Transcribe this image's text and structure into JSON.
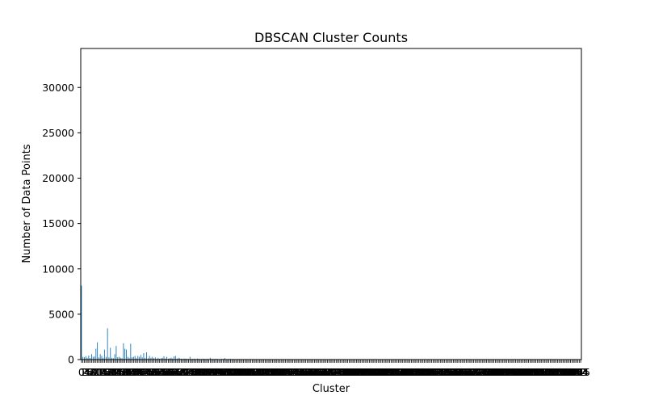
{
  "chart_data": {
    "type": "bar",
    "title": "DBSCAN Cluster Counts",
    "xlabel": "Cluster",
    "ylabel": "Number of Data Points",
    "ylim": [
      0,
      34300
    ],
    "yticks": [
      0,
      5000,
      10000,
      15000,
      20000,
      25000,
      30000
    ],
    "ytick_labels": [
      "0",
      "5000",
      "10000",
      "15000",
      "20000",
      "25000",
      "30000"
    ],
    "xtick_first_label": "0",
    "xtick_last_label": "345",
    "bar_color": "#1f77b4",
    "grid": false,
    "legend": "none",
    "categories_count": 346,
    "values": [
      8150,
      300,
      250,
      380,
      200,
      450,
      180,
      600,
      300,
      350,
      1200,
      1900,
      250,
      600,
      400,
      200,
      1100,
      300,
      3450,
      250,
      1300,
      200,
      150,
      600,
      1500,
      250,
      300,
      200,
      150,
      1800,
      1200,
      1100,
      300,
      200,
      1750,
      250,
      300,
      400,
      150,
      400,
      300,
      500,
      250,
      700,
      200,
      800,
      150,
      400,
      200,
      300,
      150,
      250,
      100,
      200,
      100,
      150,
      200,
      350,
      120,
      300,
      100,
      150,
      200,
      120,
      350,
      400,
      100,
      200,
      150,
      100,
      80,
      120,
      100,
      90,
      70,
      300,
      60,
      80,
      100,
      50,
      120,
      80,
      60,
      50,
      100,
      70,
      60,
      80,
      50,
      200,
      60,
      70,
      50,
      90,
      60,
      40,
      50,
      70,
      60,
      180,
      50,
      40,
      60,
      70,
      50,
      60,
      40,
      30,
      50,
      60,
      40,
      50,
      30,
      40,
      50,
      40,
      30,
      50,
      40,
      30,
      40,
      50,
      30,
      40,
      30,
      50,
      40,
      30,
      40,
      30,
      40,
      30,
      30,
      40,
      30,
      50,
      30,
      40,
      30,
      30,
      40,
      30,
      30,
      40,
      30,
      30,
      30,
      40,
      30,
      30,
      30,
      40,
      30,
      30,
      30,
      30,
      40,
      30,
      30,
      30,
      30,
      40,
      30,
      30,
      30,
      30,
      30,
      40,
      30,
      30,
      30,
      30,
      30,
      30,
      40,
      30,
      30,
      30,
      30,
      30,
      30,
      30,
      30,
      30,
      30,
      30,
      30,
      30,
      30,
      30,
      30,
      30,
      30,
      30,
      30,
      30,
      30,
      30,
      30,
      30,
      30,
      30,
      30,
      30,
      30,
      30,
      30,
      30,
      30,
      30,
      30,
      30,
      30,
      30,
      30,
      30,
      30,
      30,
      30,
      30,
      30,
      30,
      30,
      30,
      30,
      30,
      30,
      30,
      30,
      30,
      30,
      30,
      30,
      30,
      30,
      30,
      30,
      30,
      30,
      30,
      30,
      30,
      30,
      30,
      30,
      30,
      30,
      30,
      30,
      30,
      30,
      30,
      30,
      30,
      30,
      30,
      30,
      30,
      30,
      30,
      30,
      30,
      30,
      30,
      30,
      30,
      30,
      30,
      30,
      30,
      30,
      30,
      30,
      30,
      30,
      30,
      30,
      30,
      30,
      30,
      30,
      30,
      30,
      30,
      30,
      30,
      30,
      30,
      30,
      30,
      30,
      30,
      30,
      30,
      30,
      30,
      30,
      30,
      30,
      30,
      30,
      30,
      30,
      30,
      30,
      30,
      30,
      30,
      30,
      30,
      30,
      30,
      30,
      30,
      30,
      30,
      30,
      30,
      30,
      30,
      30,
      30,
      30,
      30,
      30,
      30,
      30,
      30,
      30,
      30,
      30,
      30,
      30,
      30,
      30,
      30,
      30,
      30,
      30,
      30,
      30,
      30,
      30,
      30,
      30,
      30,
      30,
      30,
      30,
      30,
      30,
      30,
      30,
      30,
      30,
      30,
      30,
      30,
      30,
      30,
      30,
      30,
      30,
      30,
      30,
      30,
      30
    ]
  }
}
